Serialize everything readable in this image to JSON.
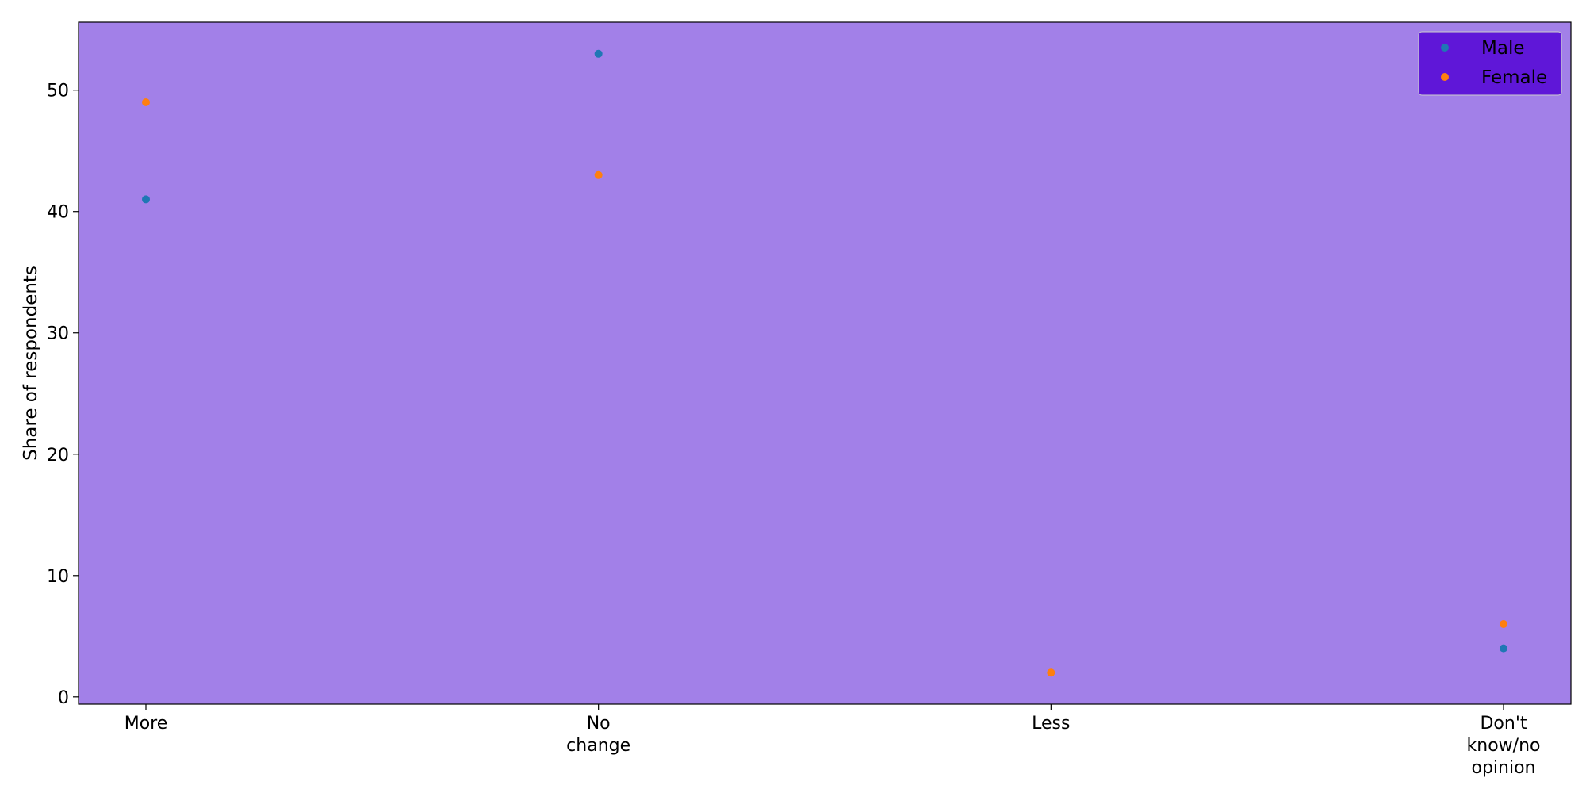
{
  "chart_data": {
    "type": "scatter",
    "categories": [
      "More",
      "No\nchange",
      "Less",
      "Don't\nknow/no\nopinion"
    ],
    "series": [
      {
        "name": "Male",
        "color": "#1f77b4",
        "values": [
          41,
          53,
          null,
          4
        ]
      },
      {
        "name": "Female",
        "color": "#ff7f0e",
        "values": [
          49,
          43,
          2,
          6
        ]
      }
    ],
    "ylabel": "Share of respondents",
    "xlabel": "",
    "ylim": [
      -0.6,
      55.6
    ],
    "yticks": [
      0,
      10,
      20,
      30,
      40,
      50
    ],
    "grid": false,
    "legend_position": "top-right",
    "colors": {
      "plot_background": "#a280e8",
      "legend_background": "#5f17d8",
      "figure_background": "#ffffff"
    }
  }
}
